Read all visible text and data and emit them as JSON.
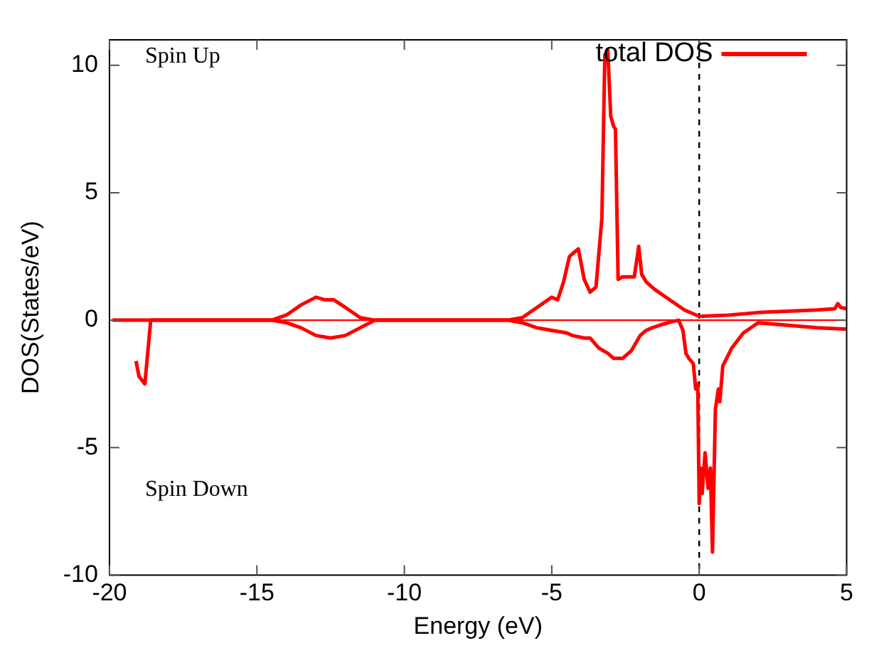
{
  "chart_data": {
    "type": "line",
    "xlabel": "Energy (eV)",
    "ylabel": "DOS(States/eV)",
    "xlim": [
      -20,
      5
    ],
    "xticks": [
      -20,
      -15,
      -10,
      -5,
      0,
      5
    ],
    "ylim": [
      -10,
      11
    ],
    "yticks": [
      -10,
      -5,
      0,
      5,
      10
    ],
    "grid": false,
    "legend": "top right",
    "marker": "none",
    "line_style": "solid",
    "annotations": [
      "Spin Up",
      "Spin Down"
    ],
    "ref_lines": [
      {
        "axis": "x",
        "value": 0,
        "color": "#000000",
        "line_style": "dashed"
      },
      {
        "axis": "y",
        "value": 0,
        "color": "#ff0000",
        "line_style": "solid"
      }
    ],
    "series": [
      {
        "name": "total DOS",
        "color": "#ff0000",
        "x": [
          -19.9,
          -14.5,
          -14,
          -13.5,
          -13,
          -12.7,
          -12.4,
          -12,
          -11.5,
          -11,
          -6.5,
          -6,
          -5.5,
          -5,
          -4.8,
          -4.6,
          -4.4,
          -4.3,
          -4.1,
          -3.9,
          -3.7,
          -3.5,
          -3.3,
          -3.2,
          -3.1,
          -3.0,
          -2.9,
          -2.84,
          -2.75,
          -2.6,
          -2.2,
          -2.05,
          -1.95,
          -1.8,
          -1.5,
          -1,
          -0.5,
          0,
          1,
          2,
          3,
          4,
          4.6,
          4.7,
          4.8,
          5
        ],
        "values": [
          0,
          0,
          0.2,
          0.6,
          0.9,
          0.8,
          0.8,
          0.5,
          0.1,
          0,
          0,
          0.1,
          0.5,
          0.9,
          0.8,
          1.5,
          2.5,
          2.6,
          2.8,
          1.6,
          1.1,
          1.3,
          4,
          10.4,
          10.6,
          8,
          7.6,
          7.5,
          1.6,
          1.7,
          1.7,
          2.9,
          1.8,
          1.5,
          1.2,
          0.8,
          0.4,
          0.15,
          0.2,
          0.3,
          0.35,
          0.4,
          0.45,
          0.65,
          0.5,
          0.45
        ]
      },
      {
        "color": "#ff0000",
        "x": [
          -19.1,
          -19,
          -18.8,
          -18.6,
          -14.5,
          -14,
          -13.5,
          -13,
          -12.5,
          -12,
          -11.5,
          -11,
          -6.5,
          -6,
          -5.5,
          -5,
          -4.5,
          -4.3,
          -3.9,
          -3.7,
          -3.4,
          -3.1,
          -2.9,
          -2.6,
          -2.3,
          -2.0,
          -1.8,
          -1.6,
          -1.2,
          -0.9,
          -0.7,
          -0.55,
          -0.45,
          -0.35,
          -0.2,
          -0.12,
          -0.05,
          0,
          0.05,
          0.1,
          0.2,
          0.3,
          0.38,
          0.45,
          0.55,
          0.65,
          0.7,
          0.8,
          1.1,
          1.5,
          2,
          3,
          4,
          5
        ],
        "values": [
          -1.6,
          -2.2,
          -2.5,
          0,
          0,
          -0.1,
          -0.3,
          -0.6,
          -0.7,
          -0.6,
          -0.3,
          0,
          0,
          -0.1,
          -0.3,
          -0.4,
          -0.5,
          -0.6,
          -0.7,
          -0.7,
          -1.1,
          -1.3,
          -1.5,
          -1.5,
          -1.2,
          -0.6,
          -0.4,
          -0.3,
          -0.15,
          -0.05,
          0,
          -0.4,
          -1.3,
          -1.5,
          -1.7,
          -2.7,
          -2.5,
          -7.2,
          -5.8,
          -6.8,
          -5.2,
          -6.6,
          -5.8,
          -9.1,
          -3.5,
          -2.7,
          -3.2,
          -1.8,
          -1.1,
          -0.5,
          -0.1,
          -0.2,
          -0.3,
          -0.35
        ]
      }
    ]
  }
}
